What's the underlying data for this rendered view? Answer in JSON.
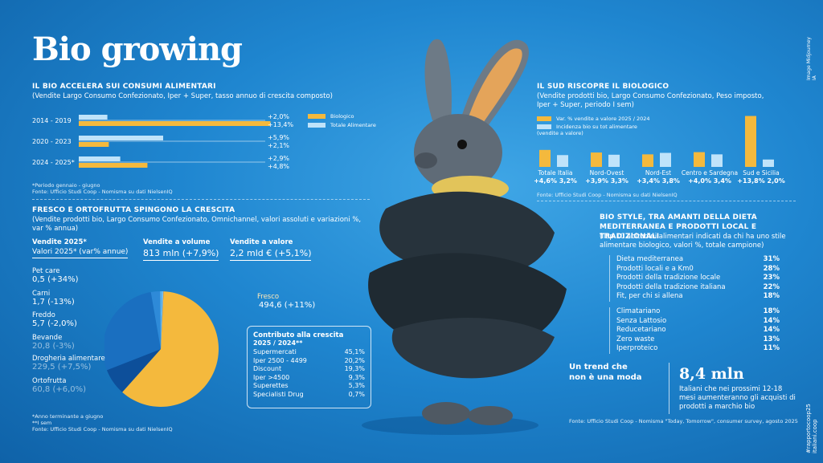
{
  "title": "Bio growing",
  "side_credit": "Image Midjourney IA",
  "side_footer": "#rapportocoop25 italiani.coop",
  "section1": {
    "heading": "IL BIO ACCELERA SUI CONSUMI ALIMENTARI",
    "subtitle": "(Vendite Largo Consumo Confezionato, Iper + Super, tasso annuo di crescita composto)",
    "legend": [
      "Biologico",
      "Totale Alimentare"
    ],
    "note": "*Periodo gennaio - giugno",
    "source": "Fonte: Ufficio Studi Coop - Nomisma su dati NielsenIQ"
  },
  "section2": {
    "heading": "FRESCO E ORTOFRUTTA SPINGONO LA CRESCITA",
    "subtitle": "(Vendite prodotti bio, Largo Consumo Confezionato, Omnichannel, valori assoluti e variazioni %, var % annua)",
    "col1_title": "Vendite 2025*",
    "col1_sub": "Valori 2025* (var% annue)",
    "col2_title": "Vendite a volume",
    "col2_value": "813 mln (+7,9%)",
    "col3_title": "Vendite a valore",
    "col3_value": "2,2 mld € (+5,1%)",
    "notes": [
      "*Anno terminante a giugno",
      "**I sem"
    ],
    "source": "Fonte: Ufficio Studi Coop - Nomisma su dati NielsenIQ",
    "contrib_title": "Contributo alla crescita",
    "contrib_sub": "2025 / 2024**",
    "contrib_rows": [
      {
        "label": "Supermercati",
        "value": "45,1%"
      },
      {
        "label": "Iper 2500 - 4499",
        "value": "20,2%"
      },
      {
        "label": "Discount",
        "value": "19,3%"
      },
      {
        "label": "Iper >4500",
        "value": "9,3%"
      },
      {
        "label": "Superettes",
        "value": "5,3%"
      },
      {
        "label": "Specialisti Drug",
        "value": "0,7%"
      }
    ]
  },
  "section3": {
    "heading": "IL SUD RISCOPRE IL BIOLOGICO",
    "subtitle": "(Vendite prodotti bio, Largo Consumo Confezionato, Peso imposto, Iper + Super, periodo I sem)",
    "legend": [
      "Var. % vendite a valore 2025 / 2024",
      "Incidenza bio su tot alimentare (vendite a valore)"
    ],
    "source": "Fonte: Ufficio Studi Coop - Nomisma su dati NielsenIQ"
  },
  "section4": {
    "heading": "BIO STYLE, TRA AMANTI DELLA DIETA MEDITERRANEA E PRODOTTI LOCAL E TRADIZIONALI",
    "subtitle": "(Top 10 abitudini alimentari indicati da chi ha uno stile alimentare biologico, valori %, totale campione)",
    "group1": [
      {
        "label": "Dieta mediterranea",
        "value": "31%"
      },
      {
        "label": "Prodotti locali e a Km0",
        "value": "28%"
      },
      {
        "label": "Prodotti della tradizione locale",
        "value": "23%"
      },
      {
        "label": "Prodotti della tradizione italiana",
        "value": "22%"
      },
      {
        "label": "Fit, per chi si allena",
        "value": "18%"
      }
    ],
    "group2": [
      {
        "label": "Climatariano",
        "value": "18%"
      },
      {
        "label": "Senza Lattosio",
        "value": "14%"
      },
      {
        "label": "Reducetariano",
        "value": "14%"
      },
      {
        "label": "Zero waste",
        "value": "13%"
      },
      {
        "label": "Iperproteico",
        "value": "11%"
      }
    ]
  },
  "trend": {
    "label_line1": "Un trend che",
    "label_line2": "non è una moda",
    "big_number": "8,4 mln",
    "description": "Italiani che nei prossimi 12-18 mesi aumenteranno gli acquisti di prodotti a marchio bio",
    "source": "Fonte: Ufficio Studi Coop - Nomisma \"Today, Tomorrow\", consumer survey, agosto 2025"
  },
  "chart_data": [
    {
      "type": "bar",
      "orientation": "horizontal",
      "categories": [
        "2014 - 2019",
        "2020 - 2023",
        "2024 - 2025*"
      ],
      "series": [
        {
          "name": "Biologico",
          "values": [
            13.4,
            2.1,
            4.8
          ],
          "labels": [
            "+13,4%",
            "+2,1%",
            "+4,8%"
          ],
          "color": "#f4b93d"
        },
        {
          "name": "Totale Alimentare",
          "values": [
            2.0,
            5.9,
            2.9
          ],
          "labels": [
            "+2,0%",
            "+5,9%",
            "+2,9%"
          ],
          "color": "#bfe3fa"
        }
      ]
    },
    {
      "type": "pie",
      "slices": [
        {
          "name": "Fresco",
          "value": 494.6,
          "label": "494,6 (+11%)",
          "color": "#f4b93d"
        },
        {
          "name": "Ortofrutta",
          "value": 60.8,
          "label": "60,8 (+6,0%)",
          "color": "#0d4f9a"
        },
        {
          "name": "Drogheria alimentare",
          "value": 229.5,
          "label": "229,5 (+7,5%)",
          "color": "#1a6fc0"
        },
        {
          "name": "Bevande",
          "value": 20.8,
          "label": "20,8 (-3%)",
          "color": "#2e8ad8"
        },
        {
          "name": "Freddo",
          "value": 5.7,
          "label": "5,7 (-2,0%)",
          "color": "#5db0ea"
        },
        {
          "name": "Carni",
          "value": 1.7,
          "label": "1,7 (-13%)",
          "color": "#8fd0f5"
        },
        {
          "name": "Pet care",
          "value": 0.5,
          "label": "0,5 (+34%)",
          "color": "#f07a2a"
        }
      ]
    },
    {
      "type": "bar",
      "categories": [
        "Totale Italia",
        "Nord-Ovest",
        "Nord-Est",
        "Centro e Sardegna",
        "Sud e Sicilia"
      ],
      "series": [
        {
          "name": "Var. % vendite a valore 2025 / 2024",
          "values": [
            4.6,
            3.9,
            3.4,
            4.0,
            13.8
          ],
          "labels": [
            "+4,6%",
            "+3,9%",
            "+3,4%",
            "+4,0%",
            "+13,8%"
          ],
          "color": "#f4b93d"
        },
        {
          "name": "Incidenza bio su tot alimentare (vendite a valore)",
          "values": [
            3.2,
            3.3,
            3.8,
            3.4,
            2.0
          ],
          "labels": [
            "3,2%",
            "3,3%",
            "3,8%",
            "3,4%",
            "2,0%"
          ],
          "color": "#bfe3fa"
        }
      ]
    }
  ]
}
